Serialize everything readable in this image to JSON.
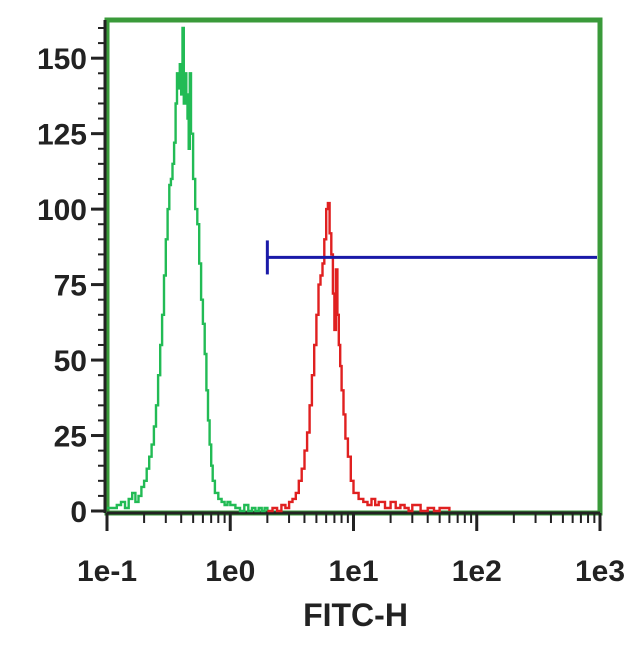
{
  "chart_data": {
    "type": "line",
    "title": "",
    "xlabel": "FITC-H",
    "ylabel": "",
    "x_scale": "log",
    "xlim": [
      0.1,
      1000
    ],
    "ylim": [
      0,
      160
    ],
    "x_ticks": [
      {
        "value": 0.1,
        "label": "1e-1"
      },
      {
        "value": 1,
        "label": "1e0"
      },
      {
        "value": 10,
        "label": "1e1"
      },
      {
        "value": 100,
        "label": "1e2"
      },
      {
        "value": 1000,
        "label": "1e3"
      }
    ],
    "y_ticks": [
      {
        "value": 0,
        "label": "0"
      },
      {
        "value": 25,
        "label": "25"
      },
      {
        "value": 50,
        "label": "50"
      },
      {
        "value": 75,
        "label": "75"
      },
      {
        "value": 100,
        "label": "100"
      },
      {
        "value": 125,
        "label": "125"
      },
      {
        "value": 150,
        "label": "150"
      }
    ],
    "grid": false,
    "legend": "none",
    "frame_color": "#3a9a3a",
    "series": [
      {
        "color": "#22bb55",
        "x": [
          0.1,
          0.12,
          0.13,
          0.14,
          0.15,
          0.16,
          0.17,
          0.18,
          0.19,
          0.2,
          0.21,
          0.22,
          0.23,
          0.24,
          0.25,
          0.26,
          0.27,
          0.28,
          0.29,
          0.3,
          0.31,
          0.32,
          0.33,
          0.34,
          0.35,
          0.36,
          0.37,
          0.38,
          0.39,
          0.4,
          0.41,
          0.42,
          0.43,
          0.44,
          0.45,
          0.46,
          0.47,
          0.48,
          0.5,
          0.52,
          0.54,
          0.56,
          0.58,
          0.6,
          0.62,
          0.64,
          0.66,
          0.68,
          0.7,
          0.72,
          0.75,
          0.8,
          0.85,
          0.9,
          0.95,
          1.0,
          1.1,
          1.2,
          1.3,
          1.4,
          1.5,
          1.6,
          1.7,
          1.8,
          1.9,
          2.0
        ],
        "y": [
          1,
          2,
          3,
          1,
          4,
          6,
          3,
          5,
          8,
          10,
          14,
          18,
          22,
          28,
          35,
          45,
          55,
          65,
          78,
          90,
          100,
          108,
          110,
          115,
          122,
          135,
          145,
          140,
          148,
          138,
          160,
          135,
          145,
          138,
          130,
          120,
          145,
          125,
          110,
          100,
          95,
          82,
          70,
          62,
          52,
          40,
          30,
          22,
          15,
          10,
          6,
          4,
          3,
          2,
          3,
          2,
          1,
          0,
          2,
          0,
          1,
          0,
          1,
          0,
          1,
          0
        ]
      },
      {
        "color": "#e02020",
        "x": [
          2.0,
          2.2,
          2.4,
          2.6,
          2.8,
          3.0,
          3.2,
          3.4,
          3.6,
          3.8,
          4.0,
          4.2,
          4.4,
          4.6,
          4.8,
          5.0,
          5.2,
          5.4,
          5.6,
          5.8,
          6.0,
          6.2,
          6.4,
          6.6,
          6.8,
          7.0,
          7.2,
          7.4,
          7.6,
          7.8,
          8.0,
          8.3,
          8.6,
          9.0,
          9.5,
          10,
          11,
          12,
          13,
          14,
          15,
          16,
          18,
          20,
          22,
          24,
          26,
          28,
          30,
          35,
          40,
          45,
          50,
          60
        ],
        "y": [
          0,
          1,
          0,
          2,
          1,
          3,
          4,
          6,
          10,
          14,
          20,
          26,
          35,
          45,
          55,
          65,
          75,
          78,
          82,
          90,
          100,
          102,
          92,
          85,
          72,
          60,
          80,
          65,
          55,
          48,
          40,
          32,
          24,
          18,
          10,
          6,
          4,
          3,
          2,
          4,
          2,
          3,
          1,
          3,
          1,
          2,
          1,
          0,
          2,
          0,
          1,
          0,
          1,
          0
        ]
      }
    ],
    "gate": {
      "x_start": 2.0,
      "x_end": 1000,
      "y": 84,
      "color": "#1a1aa8"
    }
  }
}
